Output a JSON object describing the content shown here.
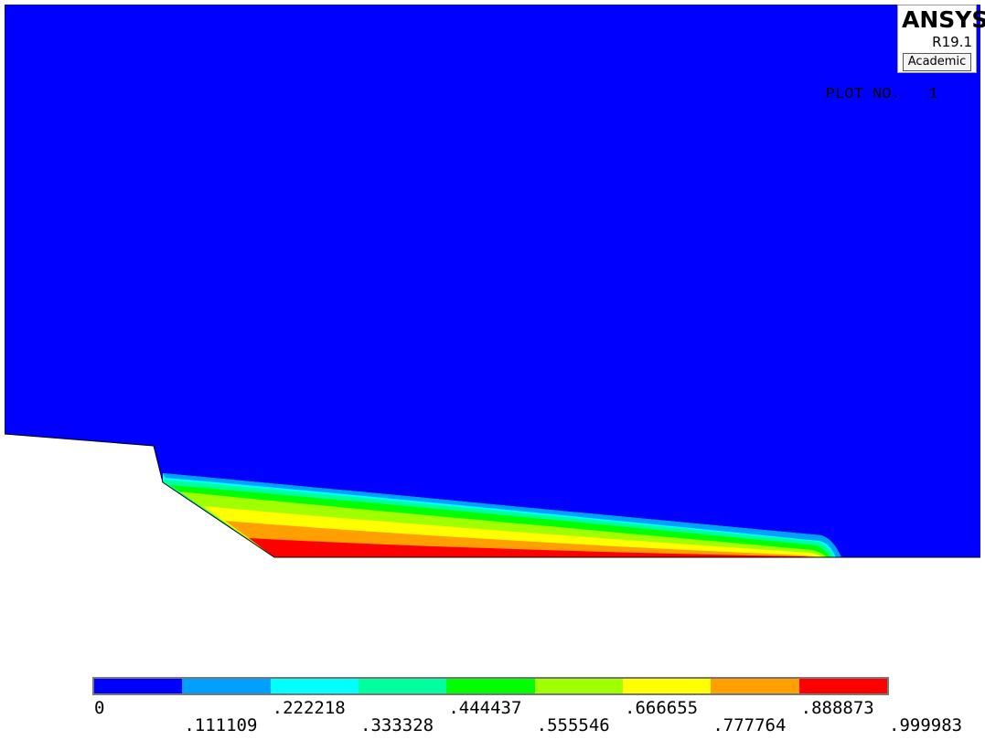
{
  "logo": {
    "title": "ANSYS",
    "revision": "R19.1",
    "edition": "Academic"
  },
  "plot_label": {
    "text": "PLOT NO.",
    "number": "1"
  },
  "colors": {
    "background": "#0000ff",
    "bands": [
      "#0000ff",
      "#00a0ff",
      "#00ffff",
      "#00ff9f",
      "#00ff00",
      "#a0ff00",
      "#ffff00",
      "#ff9f00",
      "#ff0000"
    ]
  },
  "legend": {
    "values": [
      "0",
      ".111109",
      ".222218",
      ".333328",
      ".444437",
      ".555546",
      ".666655",
      ".777764",
      ".888873",
      ".999983"
    ]
  }
}
